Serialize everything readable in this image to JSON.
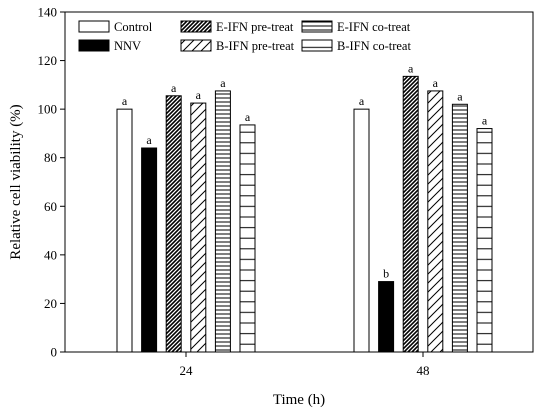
{
  "chart_data": {
    "type": "bar",
    "title": "",
    "xlabel": "Time (h)",
    "ylabel": "Relative cell viability (%)",
    "ylim": [
      0,
      140
    ],
    "yticks": [
      0,
      20,
      40,
      60,
      80,
      100,
      120,
      140
    ],
    "categories": [
      "24",
      "48"
    ],
    "grid": false,
    "legend_position": "top",
    "series": [
      {
        "name": "Control",
        "pattern": "white",
        "values": [
          100,
          100
        ],
        "labels": [
          "a",
          "a"
        ]
      },
      {
        "name": "NNV",
        "pattern": "black",
        "values": [
          84,
          29
        ],
        "labels": [
          "a",
          "b"
        ]
      },
      {
        "name": "E-IFN pre-treat",
        "pattern": "dense-diagonal",
        "values": [
          105.5,
          113.5
        ],
        "labels": [
          "a",
          "a"
        ]
      },
      {
        "name": "B-IFN pre-treat",
        "pattern": "sparse-diagonal",
        "values": [
          102.5,
          107.5
        ],
        "labels": [
          "a",
          "a"
        ]
      },
      {
        "name": "E-IFN co-treat",
        "pattern": "dense-horizontal",
        "values": [
          107.5,
          102
        ],
        "labels": [
          "a",
          "a"
        ]
      },
      {
        "name": "B-IFN co-treat",
        "pattern": "sparse-horizontal",
        "values": [
          93.5,
          92
        ],
        "labels": [
          "a",
          "a"
        ]
      }
    ]
  }
}
